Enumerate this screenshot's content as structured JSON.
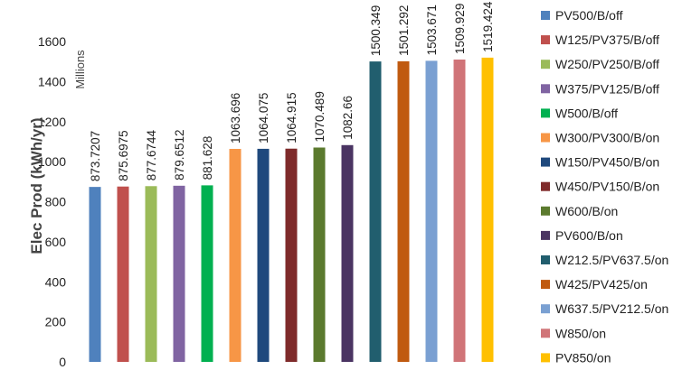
{
  "chart_data": {
    "type": "bar",
    "title": "",
    "xlabel": "",
    "ylabel": "Elec Prod (kWh/yr)",
    "yunit": "Millions",
    "ylim": [
      0,
      1600
    ],
    "yticks": [
      "0",
      "200",
      "400",
      "600",
      "800",
      "1000",
      "1200",
      "1400",
      "1600"
    ],
    "grid": false,
    "legend_position": "right",
    "categories": [
      "PV500/B/off",
      "W125/PV375/B/off",
      "W250/PV250/B/off",
      "W375/PV125/B/off",
      "W500/B/off",
      "W300/PV300/B/on",
      "W150/PV450/B/on",
      "W450/PV150/B/on",
      "W600/B/on",
      "PV600/B/on",
      "W212.5/PV637.5/on",
      "W425/PV425/on",
      "W637.5/PV212.5/on",
      "W850/on",
      "PV850/on"
    ],
    "values": [
      873.7207,
      875.6975,
      877.6744,
      879.6512,
      881.628,
      1063.696,
      1064.075,
      1064.915,
      1070.489,
      1082.66,
      1500.349,
      1501.292,
      1503.671,
      1509.929,
      1519.424
    ],
    "data_labels": [
      "873.7207",
      "875.6975",
      "877.6744",
      "879.6512",
      "881.628",
      "1063.696",
      "1064.075",
      "1064.915",
      "1070.489",
      "1082.66",
      "1500.349",
      "1501.292",
      "1503.671",
      "1509.929",
      "1519.424"
    ],
    "colors": [
      "#4f81bd",
      "#c0504d",
      "#9bbb59",
      "#8064a2",
      "#00b050",
      "#f79646",
      "#1f497d",
      "#7f2b2b",
      "#5b7a2e",
      "#4a3462",
      "#215e6e",
      "#c05a10",
      "#7aa0d2",
      "#d07478",
      "#ffc000"
    ]
  }
}
